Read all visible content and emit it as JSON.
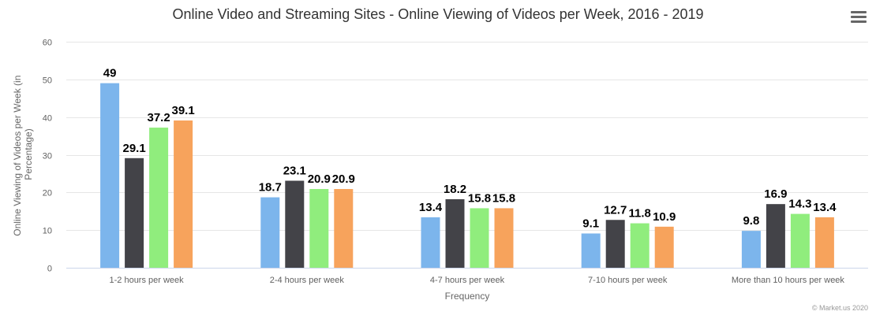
{
  "chart_data": {
    "type": "bar",
    "title": "Online Video and Streaming Sites - Online Viewing of Videos per Week, 2016 - 2019",
    "xlabel": "Frequency",
    "ylabel": "Online Viewing of Videos per Week (in Percentage)",
    "ylim": [
      0,
      60
    ],
    "yticks": [
      0,
      10,
      20,
      30,
      40,
      50,
      60
    ],
    "grid": true,
    "categories": [
      "1-2 hours per week",
      "2-4 hours per week",
      "4-7 hours per week",
      "7-10 hours per week",
      "More than 10 hours per week"
    ],
    "series": [
      {
        "color": "#7cb5ec",
        "values": [
          49,
          18.7,
          13.4,
          9.1,
          9.8
        ]
      },
      {
        "color": "#434348",
        "values": [
          29.1,
          23.1,
          18.2,
          12.7,
          16.9
        ]
      },
      {
        "color": "#90ed7d",
        "values": [
          37.2,
          20.9,
          15.8,
          11.8,
          14.3
        ]
      },
      {
        "color": "#f7a35c",
        "values": [
          39.1,
          20.9,
          15.8,
          10.9,
          13.4
        ]
      }
    ]
  },
  "credits": "© Market.us 2020",
  "menu_icon": "hamburger-menu-icon"
}
